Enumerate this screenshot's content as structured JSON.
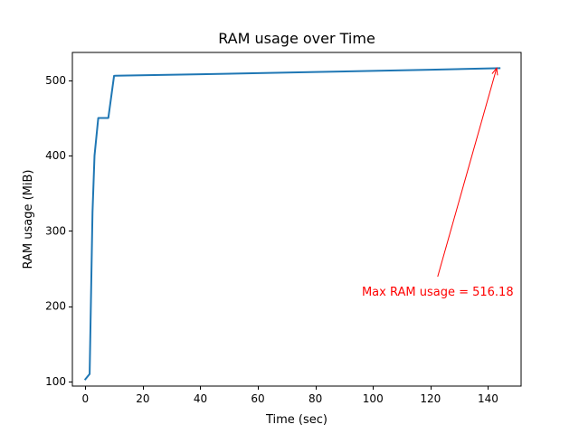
{
  "chart_data": {
    "type": "line",
    "title": "RAM usage over Time",
    "xlabel": "Time (sec)",
    "ylabel": "RAM usage (MiB)",
    "xlim": [
      -4.5,
      151.5
    ],
    "ylim": [
      94.0,
      537.0
    ],
    "xticks": [
      0,
      20,
      40,
      60,
      80,
      100,
      120,
      140
    ],
    "yticks": [
      100,
      200,
      300,
      400,
      500
    ],
    "grid": false,
    "series": [
      {
        "color": "#1f77b4",
        "x": [
          0,
          1.5,
          2.5,
          3.2,
          4.5,
          8,
          10,
          40,
          80,
          120,
          144
        ],
        "y": [
          103,
          110,
          325,
          400,
          450,
          450,
          506,
          508,
          511,
          514,
          516.18
        ]
      }
    ],
    "annotation": {
      "text": "Max RAM usage = 516.18",
      "color": "#ff0000",
      "point": [
        143,
        516.18
      ],
      "text_anchor": [
        122.5,
        220
      ]
    }
  }
}
